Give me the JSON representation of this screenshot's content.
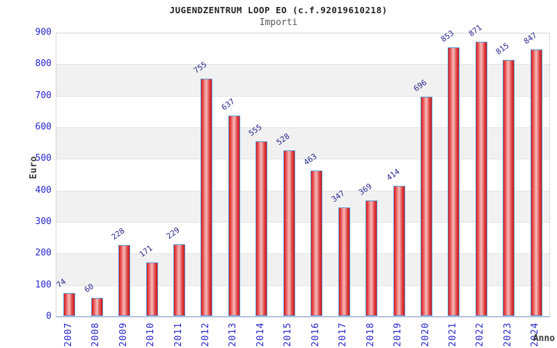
{
  "chart_data": {
    "type": "bar",
    "title": "JUGENDZENTRUM LOOP EO (c.f.92019610218)",
    "subtitle": "Importi",
    "xlabel": "Anno",
    "ylabel": "Euro",
    "categories": [
      "2007",
      "2008",
      "2009",
      "2010",
      "2011",
      "2012",
      "2013",
      "2014",
      "2015",
      "2016",
      "2017",
      "2018",
      "2019",
      "2020",
      "2021",
      "2022",
      "2023",
      "2024"
    ],
    "values": [
      74,
      60,
      228,
      171,
      229,
      755,
      637,
      555,
      528,
      463,
      347,
      369,
      414,
      696,
      853,
      871,
      815,
      847
    ],
    "ylim": [
      0,
      900
    ],
    "ytick_step": 100,
    "grid": "horizontal-lines-with-alternating-bands",
    "legend": "none",
    "colors": {
      "bar_edge": "#d91414",
      "bar_center": "#f6bcbc",
      "bar_border": "#5b9bd5",
      "tick_label": "#2424cc",
      "value_label": "#26268f",
      "band": "#f1f1f1",
      "gridline": "#e3e3e3",
      "plot_border": "#d8d8d8",
      "axis_line": "#b3c0de",
      "title": "#222222",
      "subtitle": "#555555",
      "axis_title": "#3a3a3a"
    }
  }
}
